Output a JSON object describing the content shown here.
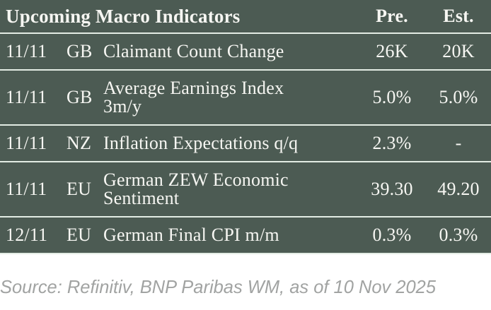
{
  "table": {
    "title": "Upcoming Macro Indicators",
    "columns": {
      "pre": "Pre.",
      "est": "Est."
    },
    "rows": [
      {
        "date": "11/11",
        "country": "GB",
        "indicator": "Claimant Count Change",
        "pre": "26K",
        "est": "20K"
      },
      {
        "date": "11/11",
        "country": "GB",
        "indicator": "Average Earnings Index\n3m/y",
        "pre": "5.0%",
        "est": "5.0%"
      },
      {
        "date": "11/11",
        "country": "NZ",
        "indicator": "Inflation Expectations q/q",
        "pre": "2.3%",
        "est": "-"
      },
      {
        "date": "11/11",
        "country": "EU",
        "indicator": "German ZEW Economic\nSentiment",
        "pre": "39.30",
        "est": "49.20"
      },
      {
        "date": "12/11",
        "country": "EU",
        "indicator": "German Final CPI m/m",
        "pre": "0.3%",
        "est": "0.3%"
      }
    ]
  },
  "source": "Source: Refinitiv, BNP Paribas WM, as of 10 Nov 2025",
  "colors": {
    "table_background": "#4c5b53",
    "divider": "#e3ece4",
    "table_text": "#f6f6f2",
    "source_text": "#a1a3a2",
    "page_background": "#ffffff"
  }
}
